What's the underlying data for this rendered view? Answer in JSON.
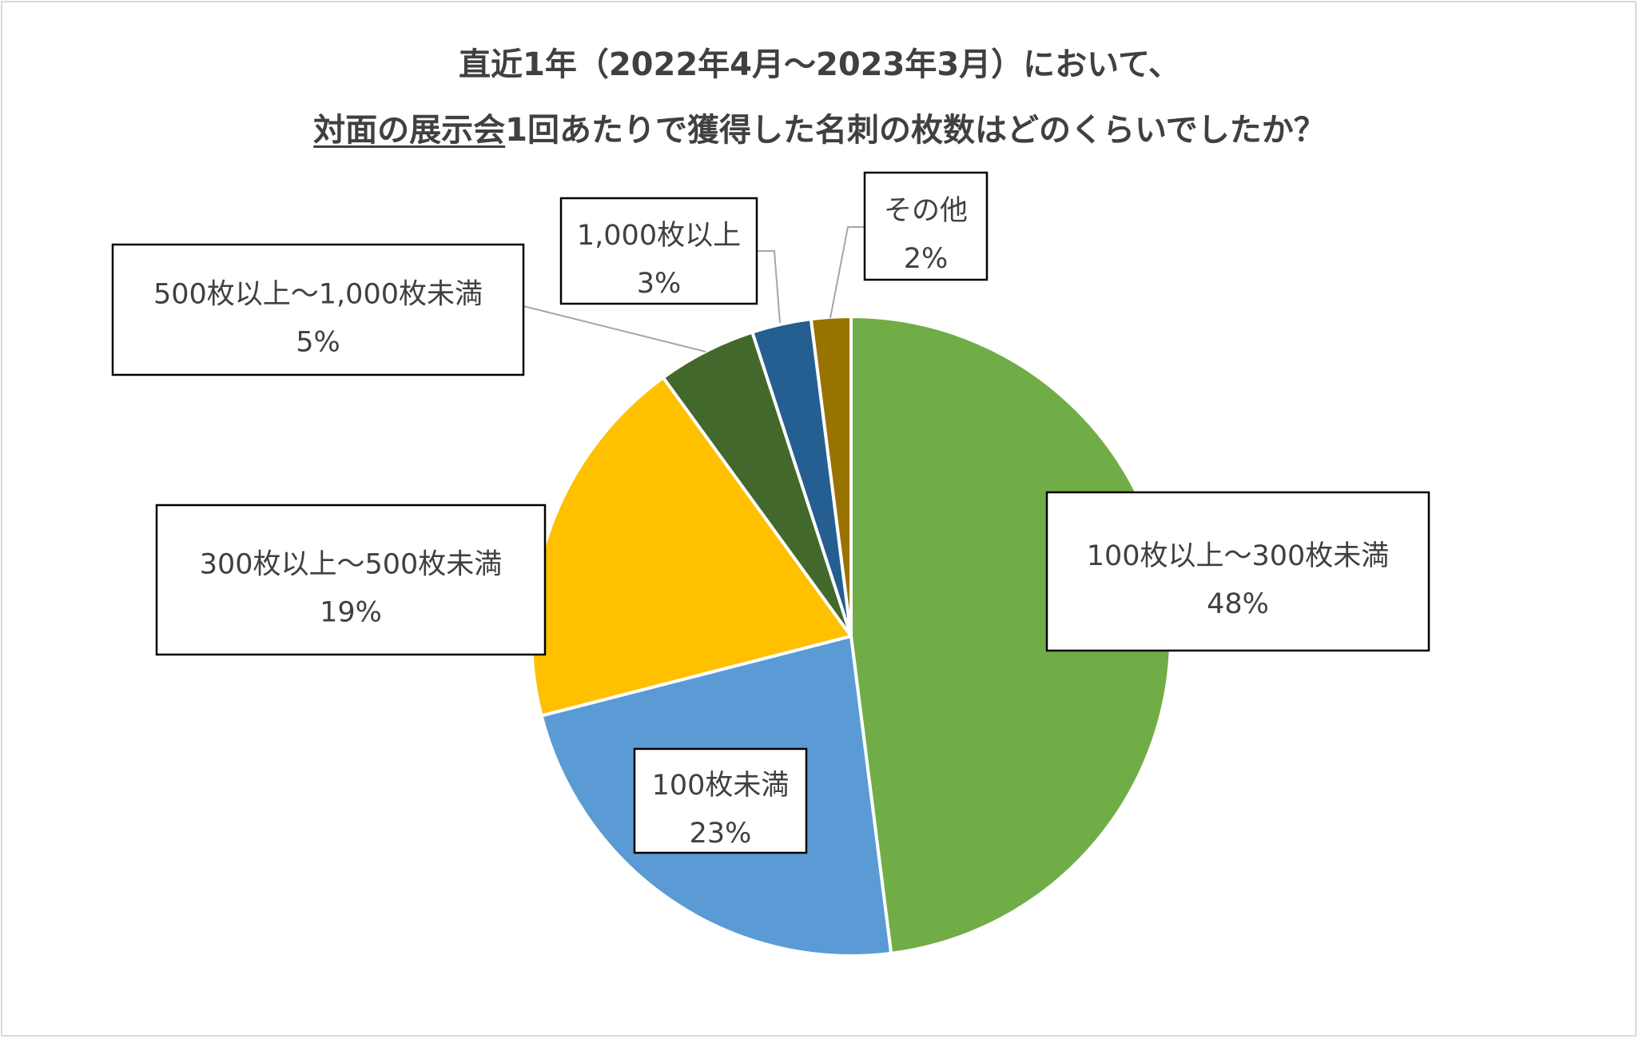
{
  "title": {
    "line1": "直近1年（2022年4月～2023年3月）において、",
    "line2_underlined": "対面の展示会",
    "line2_rest": "1回あたりで獲得した名刺の枚数はどのくらいでしたか？"
  },
  "chart_data": {
    "type": "pie",
    "title": "直近1年（2022年4月～2023年3月）において、対面の展示会1回あたりで獲得した名刺の枚数はどのくらいでしたか？",
    "unit": "%",
    "slices": [
      {
        "label": "100枚以上～300枚未満",
        "value": 48,
        "value_label": "48%",
        "color": "#70AD47"
      },
      {
        "label": "100枚未満",
        "value": 23,
        "value_label": "23%",
        "color": "#5B9BD5"
      },
      {
        "label": "300枚以上～500枚未満",
        "value": 19,
        "value_label": "19%",
        "color": "#FFC000"
      },
      {
        "label": "500枚以上～1,000枚未満",
        "value": 5,
        "value_label": "5%",
        "color": "#43682B"
      },
      {
        "label": "1,000枚以上",
        "value": 3,
        "value_label": "3%",
        "color": "#255E91"
      },
      {
        "label": "その他",
        "value": 2,
        "value_label": "2%",
        "color": "#997300"
      }
    ],
    "start_angle": "12 o'clock",
    "direction": "clockwise",
    "legend": "none"
  }
}
